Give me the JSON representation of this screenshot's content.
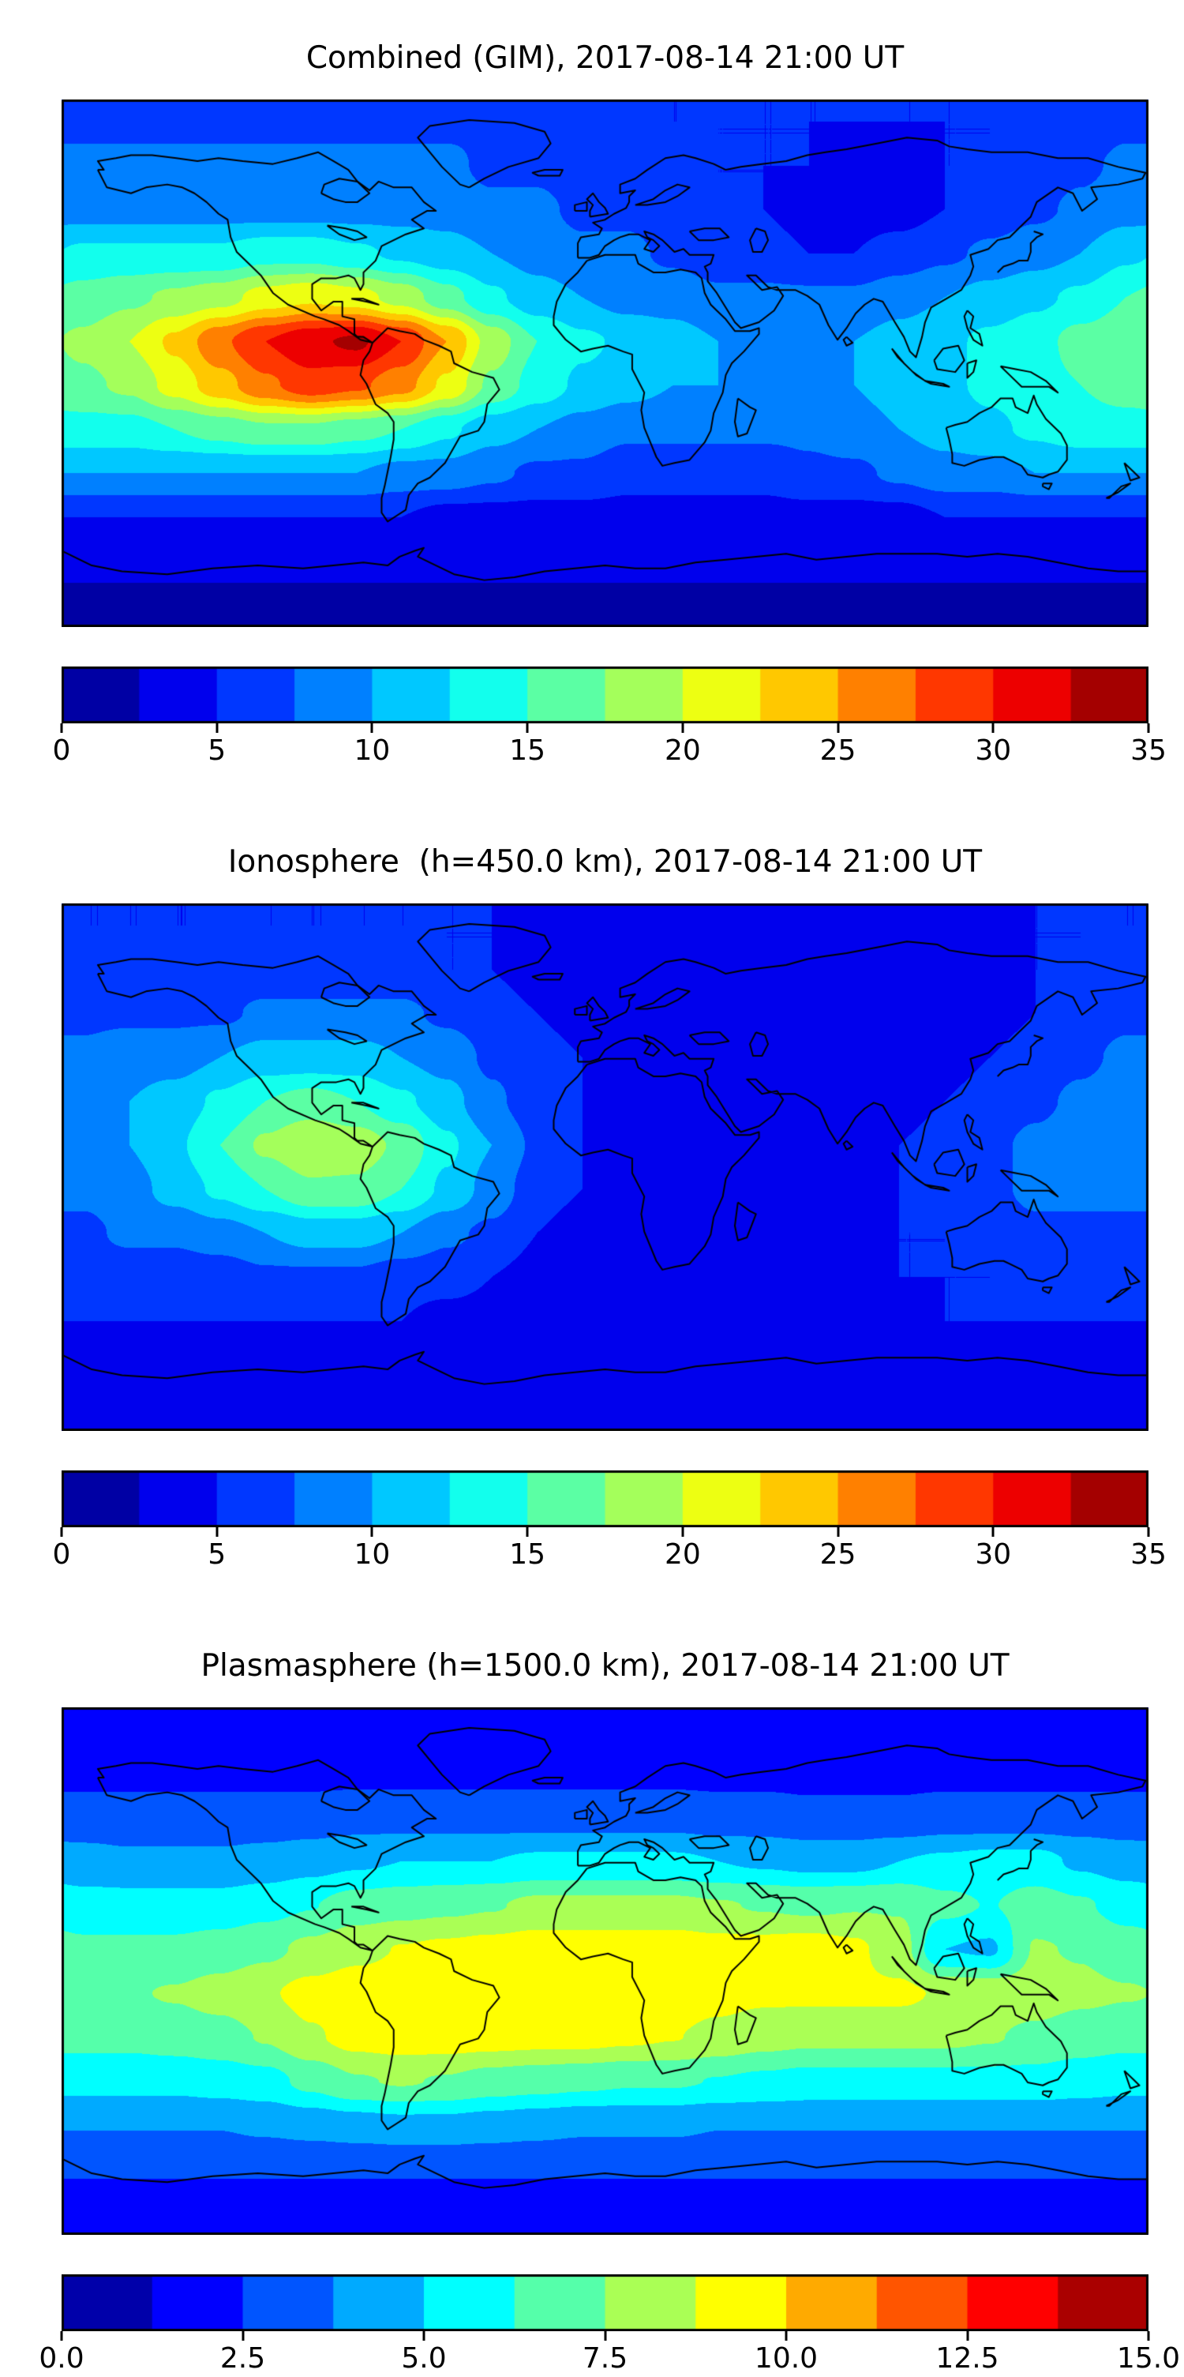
{
  "chart_data": [
    {
      "type": "heatmap",
      "title": "Combined (GIM), 2017-08-14 21:00 UT",
      "projection": "equirectangular",
      "lon_range": [
        -180,
        180
      ],
      "lat_range": [
        -90,
        90
      ],
      "colormap": "jet",
      "vmin": 0,
      "vmax": 35,
      "contour_step": 2.5,
      "colorbar_ticks": [
        "0",
        "5",
        "10",
        "15",
        "20",
        "25",
        "30",
        "35"
      ],
      "colorbar_tick_values": [
        0,
        5,
        10,
        15,
        20,
        25,
        30,
        35
      ],
      "grid_lat": [
        82.5,
        67.5,
        52.5,
        37.5,
        22.5,
        7.5,
        -7.5,
        -22.5,
        -37.5,
        -52.5,
        -67.5,
        -82.5
      ],
      "grid_lon": [
        -172.5,
        -157.5,
        -142.5,
        -127.5,
        -112.5,
        -97.5,
        -82.5,
        -67.5,
        -52.5,
        -37.5,
        -22.5,
        -7.5,
        7.5,
        22.5,
        37.5,
        52.5,
        67.5,
        82.5,
        97.5,
        112.5,
        127.5,
        142.5,
        157.5,
        172.5
      ],
      "values": [
        [
          7,
          7,
          7,
          7,
          7,
          7,
          7,
          7,
          7,
          7,
          6,
          6,
          6,
          5,
          5,
          5,
          5,
          5,
          5,
          5,
          5,
          6,
          6,
          7
        ],
        [
          8,
          8,
          8,
          8,
          8,
          8,
          8,
          8,
          8,
          7,
          7,
          6,
          6,
          6,
          5,
          5,
          5,
          4,
          4,
          5,
          5,
          6,
          7,
          8
        ],
        [
          9,
          9,
          9,
          9,
          9,
          9,
          9,
          9,
          9,
          8,
          8,
          7,
          7,
          6,
          5,
          5,
          4,
          4,
          4,
          5,
          6,
          7,
          8,
          9
        ],
        [
          13,
          13,
          13,
          13,
          14,
          14,
          13,
          12,
          11,
          10,
          9,
          8,
          8,
          7,
          6,
          6,
          5,
          5,
          6,
          7,
          8,
          9,
          10,
          12
        ],
        [
          16,
          17,
          18,
          19,
          21,
          22,
          21,
          19,
          16,
          13,
          11,
          10,
          9,
          9,
          8,
          8,
          8,
          8,
          9,
          10,
          11,
          12,
          13,
          15
        ],
        [
          18,
          20,
          23,
          27,
          30,
          32,
          33,
          30,
          25,
          19,
          15,
          13,
          12,
          11,
          10,
          10,
          10,
          10,
          11,
          12,
          13,
          14,
          16,
          17
        ],
        [
          17,
          18,
          21,
          24,
          27,
          29,
          28,
          26,
          22,
          17,
          14,
          12,
          11,
          10,
          10,
          9,
          9,
          10,
          11,
          12,
          13,
          14,
          15,
          16
        ],
        [
          14,
          14,
          15,
          16,
          17,
          17,
          16,
          15,
          13,
          11,
          10,
          9,
          8,
          8,
          8,
          8,
          8,
          9,
          10,
          11,
          12,
          13,
          14,
          14
        ],
        [
          10,
          10,
          10,
          10,
          10,
          10,
          10,
          9,
          9,
          8,
          7,
          7,
          6,
          6,
          6,
          6,
          7,
          7,
          8,
          9,
          9,
          10,
          10,
          10
        ],
        [
          5,
          5,
          5,
          5,
          5,
          5,
          5,
          5,
          4,
          4,
          4,
          4,
          4,
          4,
          4,
          4,
          4,
          4,
          4,
          5,
          5,
          5,
          5,
          5
        ],
        [
          3,
          3,
          3,
          3,
          3,
          3,
          3,
          3,
          3,
          3,
          3,
          3,
          3,
          3,
          3,
          3,
          3,
          3,
          3,
          3,
          3,
          3,
          3,
          3
        ],
        [
          2,
          2,
          2,
          2,
          2,
          2,
          2,
          2,
          2,
          2,
          2,
          2,
          2,
          2,
          2,
          2,
          2,
          2,
          2,
          2,
          2,
          2,
          2,
          2
        ]
      ]
    },
    {
      "type": "heatmap",
      "title": "Ionosphere  (h=450.0 km), 2017-08-14 21:00 UT",
      "projection": "equirectangular",
      "lon_range": [
        -180,
        180
      ],
      "lat_range": [
        -90,
        90
      ],
      "colormap": "jet",
      "vmin": 0,
      "vmax": 35,
      "contour_step": 2.5,
      "colorbar_ticks": [
        "0",
        "5",
        "10",
        "15",
        "20",
        "25",
        "30",
        "35"
      ],
      "colorbar_tick_values": [
        0,
        5,
        10,
        15,
        20,
        25,
        30,
        35
      ],
      "grid_lat": [
        82.5,
        67.5,
        52.5,
        37.5,
        22.5,
        7.5,
        -7.5,
        -22.5,
        -37.5,
        -52.5,
        -67.5,
        -82.5
      ],
      "grid_lon": [
        -172.5,
        -157.5,
        -142.5,
        -127.5,
        -112.5,
        -97.5,
        -82.5,
        -67.5,
        -52.5,
        -37.5,
        -22.5,
        -7.5,
        7.5,
        22.5,
        37.5,
        52.5,
        67.5,
        82.5,
        97.5,
        112.5,
        127.5,
        142.5,
        157.5,
        172.5
      ],
      "values": [
        [
          5,
          5,
          5,
          5,
          5,
          5,
          5,
          5,
          5,
          5,
          4,
          4,
          4,
          4,
          4,
          4,
          4,
          4,
          4,
          4,
          4,
          5,
          5,
          5
        ],
        [
          6,
          6,
          6,
          6,
          6,
          6,
          6,
          6,
          5,
          5,
          4,
          4,
          4,
          3,
          3,
          3,
          3,
          3,
          3,
          4,
          4,
          5,
          5,
          6
        ],
        [
          7,
          7,
          7,
          7,
          8,
          8,
          8,
          8,
          7,
          6,
          5,
          4,
          4,
          3,
          3,
          3,
          3,
          3,
          3,
          3,
          4,
          5,
          6,
          7
        ],
        [
          8,
          9,
          9,
          10,
          11,
          11,
          11,
          10,
          9,
          7,
          6,
          5,
          4,
          4,
          3,
          3,
          3,
          3,
          3,
          4,
          5,
          6,
          7,
          8
        ],
        [
          9,
          10,
          11,
          13,
          15,
          16,
          15,
          13,
          11,
          8,
          6,
          5,
          4,
          4,
          3,
          3,
          3,
          3,
          4,
          5,
          6,
          7,
          8,
          9
        ],
        [
          9,
          10,
          12,
          15,
          18,
          20,
          19,
          17,
          13,
          10,
          7,
          5,
          4,
          4,
          4,
          4,
          4,
          4,
          5,
          6,
          7,
          8,
          9,
          9
        ],
        [
          8,
          9,
          11,
          13,
          15,
          17,
          17,
          15,
          12,
          9,
          6,
          5,
          4,
          4,
          4,
          4,
          4,
          4,
          5,
          6,
          7,
          8,
          8,
          8
        ],
        [
          7,
          8,
          8,
          9,
          10,
          11,
          11,
          10,
          8,
          7,
          5,
          4,
          4,
          4,
          4,
          4,
          4,
          4,
          5,
          5,
          6,
          7,
          7,
          7
        ],
        [
          6,
          6,
          6,
          6,
          7,
          7,
          7,
          6,
          6,
          5,
          4,
          4,
          4,
          4,
          4,
          4,
          4,
          4,
          5,
          5,
          5,
          6,
          6,
          6
        ],
        [
          5,
          5,
          5,
          5,
          5,
          5,
          5,
          5,
          4,
          4,
          4,
          4,
          4,
          4,
          4,
          4,
          4,
          4,
          4,
          5,
          5,
          5,
          5,
          5
        ],
        [
          4,
          4,
          4,
          4,
          4,
          4,
          4,
          4,
          4,
          3,
          3,
          3,
          3,
          3,
          3,
          3,
          3,
          3,
          4,
          4,
          4,
          4,
          4,
          4
        ],
        [
          3,
          3,
          3,
          3,
          3,
          3,
          3,
          3,
          3,
          3,
          3,
          3,
          3,
          3,
          3,
          3,
          3,
          3,
          3,
          3,
          3,
          3,
          3,
          3
        ]
      ]
    },
    {
      "type": "heatmap",
      "title": "Plasmasphere (h=1500.0 km), 2017-08-14 21:00 UT",
      "projection": "equirectangular",
      "lon_range": [
        -180,
        180
      ],
      "lat_range": [
        -90,
        90
      ],
      "colormap": "jet",
      "vmin": 0,
      "vmax": 15,
      "contour_step": 1.25,
      "colorbar_ticks": [
        "0.0",
        "2.5",
        "5.0",
        "7.5",
        "10.0",
        "12.5",
        "15.0"
      ],
      "colorbar_tick_values": [
        0,
        2.5,
        5,
        7.5,
        10,
        12.5,
        15
      ],
      "grid_lat": [
        82.5,
        67.5,
        52.5,
        37.5,
        22.5,
        7.5,
        -7.5,
        -22.5,
        -37.5,
        -52.5,
        -67.5,
        -82.5
      ],
      "grid_lon": [
        -172.5,
        -157.5,
        -142.5,
        -127.5,
        -112.5,
        -97.5,
        -82.5,
        -67.5,
        -52.5,
        -37.5,
        -22.5,
        -7.5,
        7.5,
        22.5,
        37.5,
        52.5,
        67.5,
        82.5,
        97.5,
        112.5,
        127.5,
        142.5,
        157.5,
        172.5
      ],
      "values": [
        [
          1.8,
          1.8,
          1.8,
          1.8,
          1.8,
          1.8,
          1.8,
          1.8,
          1.8,
          1.8,
          1.8,
          1.8,
          1.8,
          1.8,
          1.8,
          1.8,
          1.8,
          1.8,
          1.8,
          1.8,
          1.8,
          1.8,
          1.8,
          1.8
        ],
        [
          2.2,
          2.2,
          2.2,
          2.2,
          2.2,
          2.2,
          2.2,
          2.2,
          2.2,
          2.2,
          2.2,
          2.2,
          2.2,
          2.2,
          2.2,
          2.2,
          2.2,
          2.2,
          2.2,
          2.2,
          2.2,
          2.2,
          2.2,
          2.2
        ],
        [
          3,
          3,
          3,
          3,
          3,
          3,
          3.2,
          3.2,
          3.2,
          3.2,
          3.2,
          3.2,
          3.2,
          3.2,
          3,
          3,
          2.8,
          2.8,
          2.8,
          3,
          3,
          3,
          3,
          3
        ],
        [
          4.2,
          4,
          4,
          4,
          4.2,
          4.5,
          4.8,
          5,
          5,
          5,
          5.2,
          5.2,
          5.2,
          5.2,
          5,
          4.8,
          4.6,
          4.6,
          5,
          5.2,
          5.4,
          5.4,
          4.8,
          4.4
        ],
        [
          5.5,
          5.5,
          5.5,
          5.5,
          5.8,
          6.2,
          6.8,
          7,
          7.2,
          7.4,
          7.8,
          7.8,
          7.8,
          7.8,
          7.6,
          7.4,
          7.2,
          7.4,
          7.4,
          6.6,
          6.2,
          6.8,
          6.4,
          5.8
        ],
        [
          6.5,
          6.5,
          6.5,
          6.8,
          7.2,
          7.8,
          8.4,
          8.8,
          9,
          9.2,
          9.4,
          9.4,
          9.4,
          9.4,
          9.2,
          9.2,
          9.4,
          9,
          8,
          5,
          4.8,
          7.6,
          7.4,
          6.8
        ],
        [
          7.4,
          7.4,
          7.6,
          8,
          8.6,
          9.2,
          9.5,
          9.6,
          9.6,
          9.6,
          9.6,
          9.6,
          9.6,
          9.5,
          9.2,
          9,
          9,
          9,
          9,
          8.6,
          8.4,
          8.2,
          7.8,
          7.6
        ],
        [
          6.6,
          6.6,
          6.8,
          7,
          7.6,
          8.6,
          9.2,
          9.4,
          9.4,
          9.3,
          9.2,
          9.2,
          9,
          8.8,
          8.4,
          8,
          7.8,
          7.8,
          7.8,
          7.8,
          7.6,
          7.2,
          6.8,
          6.6
        ],
        [
          5.4,
          5.4,
          5.4,
          5.6,
          5.8,
          6.6,
          7.4,
          7.6,
          7.4,
          7,
          6.8,
          6.6,
          6.4,
          6.4,
          6.2,
          6,
          5.8,
          5.8,
          5.8,
          5.8,
          5.8,
          5.8,
          5.6,
          5.4
        ],
        [
          3.8,
          3.8,
          3.8,
          3.8,
          4,
          4.2,
          4.4,
          4.6,
          4.6,
          4.4,
          4.2,
          4,
          4,
          4,
          3.8,
          3.8,
          3.8,
          3.8,
          3.8,
          3.8,
          3.8,
          3.8,
          3.8,
          3.8
        ],
        [
          2.6,
          2.6,
          2.6,
          2.6,
          2.6,
          2.6,
          2.6,
          2.6,
          2.6,
          2.6,
          2.6,
          2.6,
          2.6,
          2.6,
          2.6,
          2.6,
          2.6,
          2.6,
          2.6,
          2.6,
          2.6,
          2.6,
          2.6,
          2.6
        ],
        [
          1.8,
          1.8,
          1.8,
          1.8,
          1.8,
          1.8,
          1.8,
          1.8,
          1.8,
          1.8,
          1.8,
          1.8,
          1.8,
          1.8,
          1.8,
          1.8,
          1.8,
          1.8,
          1.8,
          1.8,
          1.8,
          1.8,
          1.8,
          1.8
        ]
      ]
    }
  ]
}
